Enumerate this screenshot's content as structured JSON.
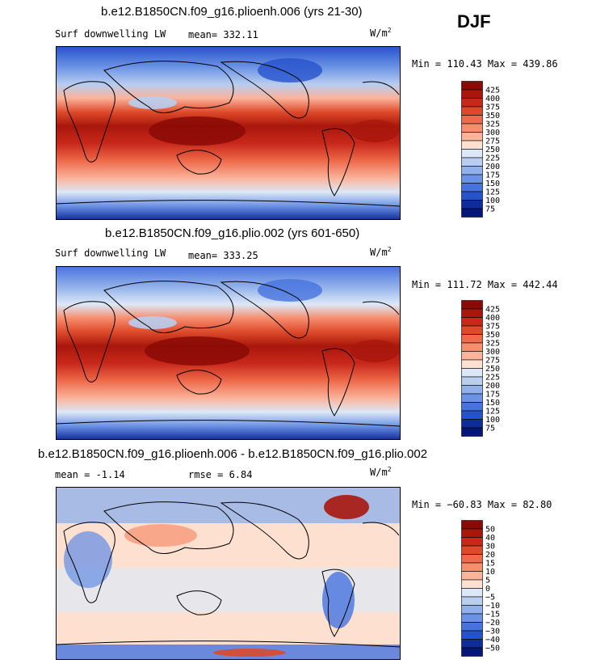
{
  "season": "DJF",
  "chart_data": [
    {
      "type": "heatmap",
      "title": "b.e12.B1850CN.f09_g16.plioenh.006 (yrs 21-30)",
      "variable": "Surf downwelling LW",
      "stat1": "mean=  332.11",
      "stat2": "",
      "units": "W/m",
      "units_sup": "2",
      "minmax": "Min = 110.43 Max = 439.86",
      "levels": [
        "425",
        "400",
        "375",
        "350",
        "325",
        "300",
        "275",
        "250",
        "225",
        "200",
        "175",
        "150",
        "125",
        "100",
        "75"
      ],
      "colors": [
        "#8a0a06",
        "#a9170c",
        "#c8281a",
        "#dd4a2a",
        "#ee6a4a",
        "#f68e6e",
        "#fbb39a",
        "#fde0d0",
        "#dce8f7",
        "#b8cdf0",
        "#92b1ea",
        "#6b92e4",
        "#4673de",
        "#2553cc",
        "#0e2c9a",
        "#06157a"
      ]
    },
    {
      "type": "heatmap",
      "title": "b.e12.B1850CN.f09_g16.plio.002 (yrs 601-650)",
      "variable": "Surf downwelling LW",
      "stat1": "mean=  333.25",
      "stat2": "",
      "units": "W/m",
      "units_sup": "2",
      "minmax": "Min = 111.72 Max = 442.44",
      "levels": [
        "425",
        "400",
        "375",
        "350",
        "325",
        "300",
        "275",
        "250",
        "225",
        "200",
        "175",
        "150",
        "125",
        "100",
        "75"
      ],
      "colors": [
        "#8a0a06",
        "#a9170c",
        "#c8281a",
        "#dd4a2a",
        "#ee6a4a",
        "#f68e6e",
        "#fbb39a",
        "#fde0d0",
        "#dce8f7",
        "#b8cdf0",
        "#92b1ea",
        "#6b92e4",
        "#4673de",
        "#2553cc",
        "#0e2c9a",
        "#06157a"
      ]
    },
    {
      "type": "heatmap",
      "title": "b.e12.B1850CN.f09_g16.plioenh.006 - b.e12.B1850CN.f09_g16.plio.002",
      "variable": "",
      "stat1": "mean =   -1.14",
      "stat2": "rmse =    6.84",
      "units": "W/m",
      "units_sup": "2",
      "minmax": "Min = −60.83 Max =  82.80",
      "levels": [
        "50",
        "40",
        "30",
        "20",
        "15",
        "10",
        "5",
        "0",
        "−5",
        "−10",
        "−15",
        "−20",
        "−30",
        "−40",
        "−50"
      ],
      "colors": [
        "#8a0a06",
        "#a9170c",
        "#c8281a",
        "#dd4a2a",
        "#ee6a4a",
        "#f68e6e",
        "#fbb39a",
        "#fde0d0",
        "#dce8f7",
        "#b8cdf0",
        "#92b1ea",
        "#6b92e4",
        "#4673de",
        "#2553cc",
        "#0e2c9a",
        "#06157a"
      ]
    }
  ]
}
